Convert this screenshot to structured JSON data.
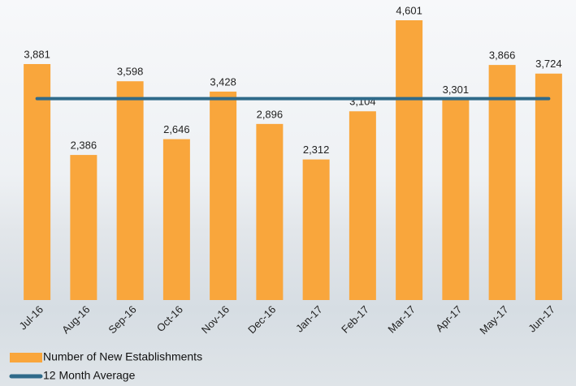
{
  "chart_data": {
    "type": "bar",
    "categories": [
      "Jul-16",
      "Aug-16",
      "Sep-16",
      "Oct-16",
      "Nov-16",
      "Dec-16",
      "Jan-17",
      "Feb-17",
      "Mar-17",
      "Apr-17",
      "May-17",
      "Jun-17"
    ],
    "series": [
      {
        "name": "Number of New Establishments",
        "type": "bar",
        "color": "#f9a63c",
        "values": [
          3881,
          2386,
          3598,
          2646,
          3428,
          2896,
          2312,
          3104,
          4601,
          3301,
          3866,
          3724
        ],
        "value_labels": [
          "3,881",
          "2,386",
          "3,598",
          "2,646",
          "3,428",
          "2,896",
          "2,312",
          "3,104",
          "4,601",
          "3,301",
          "3,866",
          "3,724"
        ]
      },
      {
        "name": "12 Month Average",
        "type": "line",
        "color": "#2f6a8a",
        "values": [
          3312,
          3312,
          3312,
          3312,
          3312,
          3312,
          3312,
          3312,
          3312,
          3312,
          3312,
          3312
        ]
      }
    ]
  }
}
